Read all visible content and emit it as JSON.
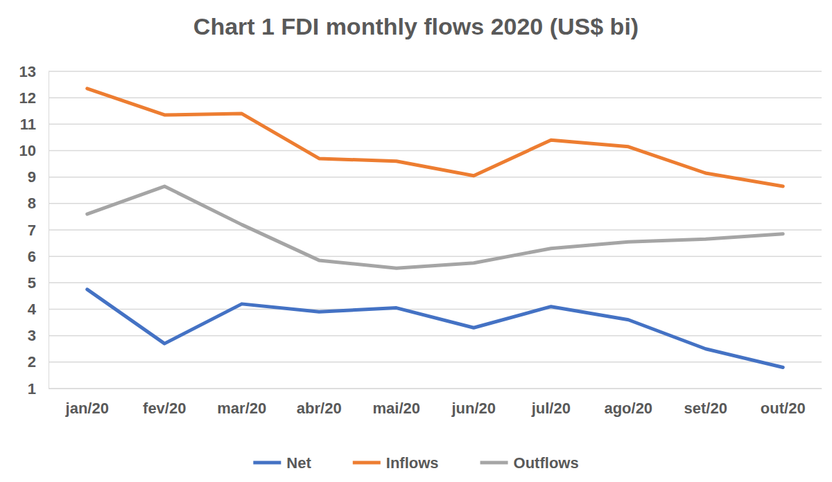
{
  "chart_data": {
    "type": "line",
    "title": "Chart 1 FDI monthly flows 2020 (US$ bi)",
    "categories": [
      "jan/20",
      "fev/20",
      "mar/20",
      "abr/20",
      "mai/20",
      "jun/20",
      "jul/20",
      "ago/20",
      "set/20",
      "out/20"
    ],
    "series": [
      {
        "name": "Net",
        "color": "#4472c4",
        "values": [
          4.75,
          2.7,
          4.2,
          3.9,
          4.05,
          3.3,
          4.1,
          3.6,
          2.5,
          1.8
        ]
      },
      {
        "name": "Inflows",
        "color": "#ed7d31",
        "values": [
          12.35,
          11.35,
          11.4,
          9.7,
          9.6,
          9.05,
          10.4,
          10.15,
          9.15,
          8.65
        ]
      },
      {
        "name": "Outflows",
        "color": "#a5a5a5",
        "values": [
          7.6,
          8.65,
          7.2,
          5.85,
          5.55,
          5.75,
          6.3,
          6.55,
          6.65,
          6.85
        ]
      }
    ],
    "ylim": [
      1,
      13
    ],
    "yticks": [
      1,
      2,
      3,
      4,
      5,
      6,
      7,
      8,
      9,
      10,
      11,
      12,
      13
    ],
    "grid": true,
    "legend": "bottom"
  }
}
